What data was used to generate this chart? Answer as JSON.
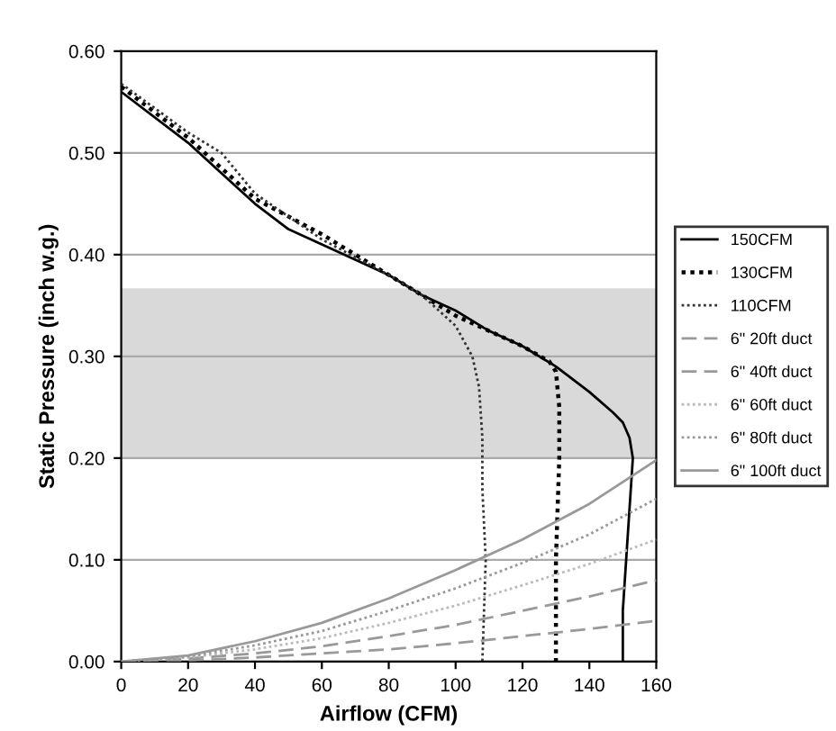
{
  "chart_data": {
    "type": "line",
    "xlabel": "Airflow (CFM)",
    "ylabel": "Static Pressure (inch w.g.)",
    "xlim": [
      0,
      160
    ],
    "xticks": [
      0,
      20,
      40,
      60,
      80,
      100,
      120,
      140,
      160
    ],
    "ylim": [
      0,
      0.6
    ],
    "yticks": [
      {
        "value": 0,
        "label": "0.00"
      },
      {
        "value": 0.1,
        "label": "0.10"
      },
      {
        "value": 0.2,
        "label": "0.20"
      },
      {
        "value": 0.3,
        "label": "0.30"
      },
      {
        "value": 0.4,
        "label": "0.40"
      },
      {
        "value": 0.5,
        "label": "0.50"
      },
      {
        "value": 0.6,
        "label": "0.60"
      }
    ],
    "grid": "y",
    "legend": "right",
    "marker": "none",
    "bands": [
      {
        "axis": "y",
        "from": 0.2,
        "to": 0.367,
        "color": "#d9d9d9"
      }
    ],
    "series": [
      {
        "name": "150CFM",
        "color": "#000000",
        "line_style": "solid",
        "x": [
          0,
          20,
          30,
          40,
          50,
          60,
          70,
          80,
          90,
          100,
          110,
          120,
          130,
          140,
          147,
          150,
          152,
          153,
          152,
          151,
          150,
          150
        ],
        "values": [
          0.56,
          0.51,
          0.48,
          0.45,
          0.425,
          0.41,
          0.395,
          0.38,
          0.36,
          0.345,
          0.325,
          0.31,
          0.29,
          0.265,
          0.245,
          0.235,
          0.22,
          0.2,
          0.15,
          0.1,
          0.05,
          0
        ]
      },
      {
        "name": "130CFM",
        "color": "#000000",
        "line_style": "dotted",
        "x": [
          0,
          20,
          40,
          60,
          80,
          100,
          120,
          128,
          130,
          131,
          131,
          130,
          130
        ],
        "values": [
          0.565,
          0.515,
          0.455,
          0.42,
          0.38,
          0.34,
          0.31,
          0.295,
          0.285,
          0.25,
          0.2,
          0.1,
          0
        ]
      },
      {
        "name": "110CFM",
        "color": "#333333",
        "line_style": "dotted",
        "x": [
          0,
          20,
          30,
          40,
          60,
          80,
          90,
          100,
          105,
          107,
          108,
          108,
          109,
          108
        ],
        "values": [
          0.568,
          0.52,
          0.5,
          0.46,
          0.415,
          0.38,
          0.36,
          0.33,
          0.3,
          0.27,
          0.22,
          0.17,
          0.1,
          0
        ]
      },
      {
        "name": "6\" 20ft duct",
        "color": "#999999",
        "line_style": "dashed",
        "x": [
          0,
          20,
          40,
          60,
          80,
          100,
          120,
          140,
          160
        ],
        "values": [
          0,
          0.001,
          0.004,
          0.008,
          0.012,
          0.018,
          0.025,
          0.032,
          0.04
        ]
      },
      {
        "name": "6\" 40ft duct",
        "color": "#999999",
        "line_style": "dashed",
        "x": [
          0,
          20,
          40,
          60,
          80,
          100,
          120,
          140,
          160
        ],
        "values": [
          0,
          0.003,
          0.008,
          0.015,
          0.025,
          0.036,
          0.05,
          0.064,
          0.08
        ]
      },
      {
        "name": "6\" 60ft duct",
        "color": "#bbbbbb",
        "line_style": "dotted",
        "x": [
          0,
          20,
          40,
          60,
          80,
          100,
          120,
          140,
          160
        ],
        "values": [
          0,
          0.004,
          0.012,
          0.023,
          0.038,
          0.055,
          0.075,
          0.096,
          0.12
        ]
      },
      {
        "name": "6\" 80ft duct",
        "color": "#999999",
        "line_style": "dotted",
        "x": [
          0,
          20,
          40,
          60,
          80,
          100,
          120,
          140,
          160
        ],
        "values": [
          0,
          0.005,
          0.016,
          0.03,
          0.05,
          0.072,
          0.097,
          0.125,
          0.16
        ]
      },
      {
        "name": "6\" 100ft duct",
        "color": "#999999",
        "line_style": "solid",
        "x": [
          0,
          20,
          40,
          60,
          80,
          100,
          120,
          140,
          160
        ],
        "values": [
          0,
          0.006,
          0.02,
          0.038,
          0.062,
          0.09,
          0.12,
          0.155,
          0.198
        ]
      }
    ]
  }
}
